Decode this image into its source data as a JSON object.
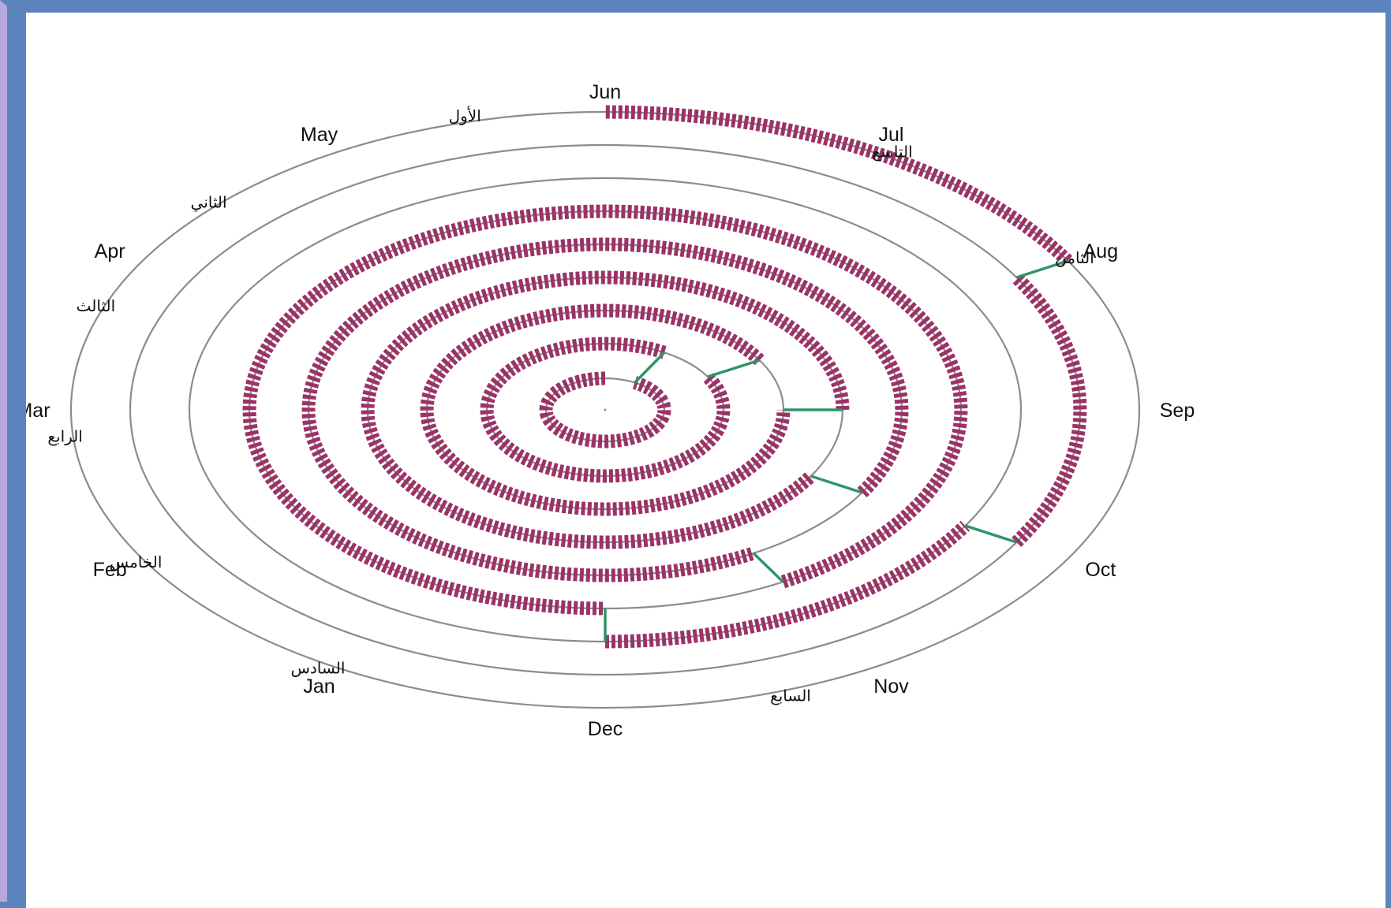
{
  "colors": {
    "segment": "#9b3366",
    "connector": "#2e9567",
    "ring": "#8c8c8c",
    "frame": "#5b84bd"
  },
  "months": [
    "Jun",
    "May",
    "Apr",
    "Mar",
    "Feb",
    "Jan",
    "Dec",
    "Nov",
    "Oct",
    "Sep",
    "Aug",
    "Jul"
  ],
  "rings": [
    "الأول",
    "الثاني",
    "الثالث",
    "الرابع",
    "الخامس",
    "السادس",
    "السابع",
    "الثامن",
    "التاسع"
  ],
  "spiral": [
    {
      "ring": 1,
      "from": "Jun",
      "to": "May"
    },
    {
      "ring": 2,
      "from": "May",
      "to": "Apr"
    },
    {
      "ring": 3,
      "from": "Apr",
      "to": "Mar"
    },
    {
      "ring": 4,
      "from": "Mar",
      "to": "Feb"
    },
    {
      "ring": 5,
      "from": "Feb",
      "to": "Jan"
    },
    {
      "ring": 6,
      "from": "Jan",
      "to": "Dec"
    },
    {
      "ring": 7,
      "from": "Dec",
      "to": "Feb"
    },
    {
      "ring": 8,
      "from": "Feb",
      "to": "Apr"
    },
    {
      "ring": 9,
      "from": "Apr",
      "to": "Jun"
    }
  ]
}
